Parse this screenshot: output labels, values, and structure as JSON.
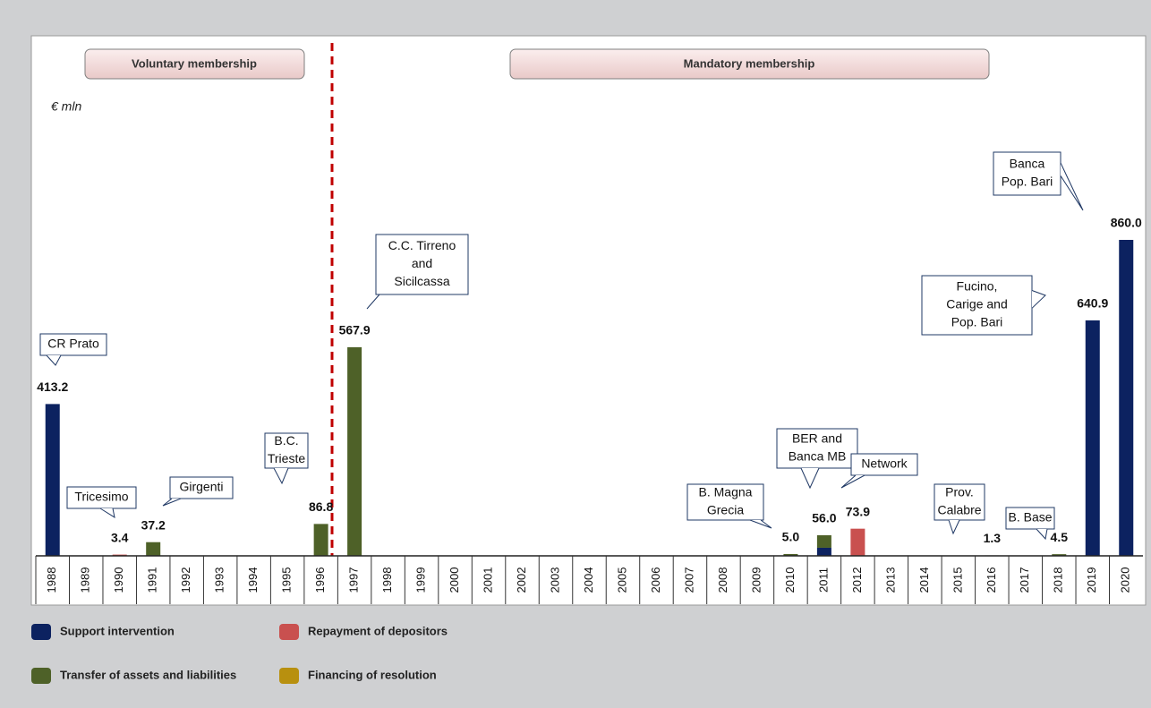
{
  "chart_data": {
    "type": "bar",
    "unit_label": "€ mln",
    "periods": [
      "Voluntary membership",
      "Mandatory membership"
    ],
    "categories": [
      "1988",
      "1989",
      "1990",
      "1991",
      "1992",
      "1993",
      "1994",
      "1995",
      "1996",
      "1997",
      "1998",
      "1999",
      "2000",
      "2001",
      "2002",
      "2003",
      "2004",
      "2005",
      "2006",
      "2007",
      "2008",
      "2009",
      "2010",
      "2011",
      "2012",
      "2013",
      "2014",
      "2015",
      "2016",
      "2017",
      "2018",
      "2019",
      "2020"
    ],
    "series": [
      {
        "name": "Support intervention",
        "color": "#0c2260",
        "values": [
          413.2,
          null,
          null,
          null,
          null,
          null,
          null,
          null,
          null,
          null,
          null,
          null,
          null,
          null,
          null,
          null,
          null,
          null,
          null,
          null,
          null,
          null,
          null,
          22,
          null,
          null,
          null,
          null,
          null,
          null,
          null,
          640.9,
          860.0
        ]
      },
      {
        "name": "Repayment of depositors",
        "color": "#c9504f",
        "values": [
          null,
          null,
          3.4,
          null,
          null,
          null,
          null,
          null,
          null,
          null,
          null,
          null,
          null,
          null,
          null,
          null,
          null,
          null,
          null,
          null,
          null,
          null,
          null,
          null,
          73.9,
          null,
          null,
          null,
          null,
          null,
          null,
          null,
          null
        ]
      },
      {
        "name": "Transfer of assets and liabilities",
        "color": "#4e6128",
        "values": [
          null,
          null,
          null,
          37.2,
          null,
          null,
          null,
          null,
          86.8,
          567.9,
          null,
          null,
          null,
          null,
          null,
          null,
          null,
          null,
          null,
          null,
          null,
          null,
          5.0,
          34,
          null,
          null,
          null,
          null,
          1.3,
          null,
          4.5,
          null,
          null
        ]
      },
      {
        "name": "Financing of resolution",
        "color": "#b8900f",
        "values": [
          null,
          null,
          null,
          null,
          null,
          null,
          null,
          null,
          null,
          null,
          null,
          null,
          null,
          null,
          null,
          null,
          null,
          null,
          null,
          null,
          null,
          null,
          null,
          null,
          null,
          null,
          null,
          null,
          null,
          null,
          null,
          null,
          null
        ]
      }
    ],
    "value_labels": [
      "413.2",
      null,
      "3.4",
      "37.2",
      null,
      null,
      null,
      null,
      "86.8",
      "567.9",
      null,
      null,
      null,
      null,
      null,
      null,
      null,
      null,
      null,
      null,
      null,
      null,
      "5.0",
      "56.0",
      "73.9",
      null,
      null,
      null,
      "1.3",
      null,
      "4.5",
      "640.9",
      "860.0"
    ],
    "annotations": [
      {
        "category": "1988",
        "lines": [
          "CR Prato"
        ]
      },
      {
        "category": "1990",
        "lines": [
          "Tricesimo"
        ]
      },
      {
        "category": "1991",
        "lines": [
          "Girgenti"
        ]
      },
      {
        "category": "1996",
        "lines": [
          "B.C.",
          "Trieste"
        ]
      },
      {
        "category": "1997",
        "lines": [
          "C.C. Tirreno",
          "and",
          "Sicilcassa"
        ]
      },
      {
        "category": "2010",
        "lines": [
          "B. Magna",
          "Grecia"
        ]
      },
      {
        "category": "2011",
        "lines": [
          "BER and",
          "Banca MB"
        ]
      },
      {
        "category": "2012",
        "lines": [
          "Network"
        ]
      },
      {
        "category": "2016",
        "lines": [
          "Prov.",
          "Calabre"
        ]
      },
      {
        "category": "2018",
        "lines": [
          "B. Base"
        ]
      },
      {
        "category": "2019",
        "lines": [
          "Fucino,",
          "Carige and",
          "Pop. Bari"
        ]
      },
      {
        "category": "2020",
        "lines": [
          "Banca",
          "Pop. Bari"
        ]
      }
    ]
  }
}
